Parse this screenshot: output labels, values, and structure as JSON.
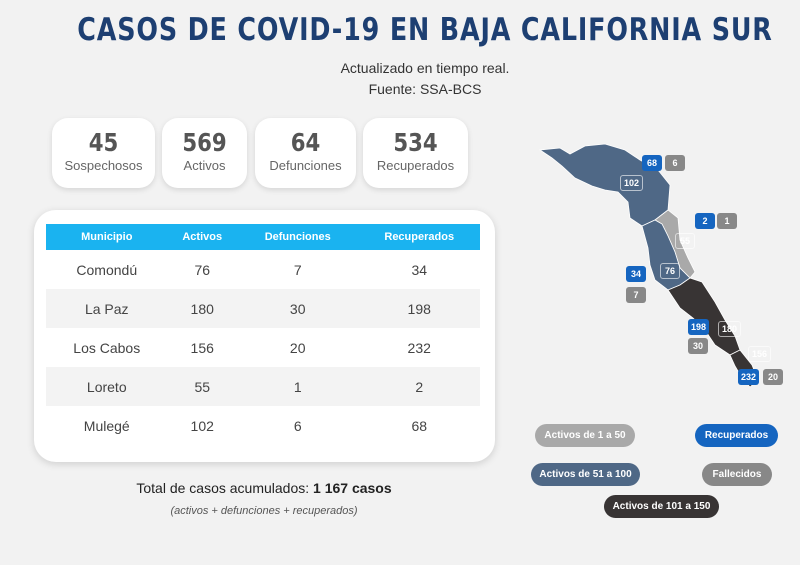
{
  "header": {
    "title": "CASOS DE COVID-19 EN BAJA CALIFORNIA SUR",
    "subtitle_1": "Actualizado en tiempo real.",
    "subtitle_2": "Fuente: SSA-BCS"
  },
  "stats": [
    {
      "value": "45",
      "label": "Sospechosos"
    },
    {
      "value": "569",
      "label": "Activos"
    },
    {
      "value": "64",
      "label": "Defunciones"
    },
    {
      "value": "534",
      "label": "Recuperados"
    }
  ],
  "table": {
    "headers": [
      "Municipio",
      "Activos",
      "Defunciones",
      "Recuperados"
    ],
    "rows": [
      [
        "Comondú",
        "76",
        "7",
        "34"
      ],
      [
        "La Paz",
        "180",
        "30",
        "198"
      ],
      [
        "Los Cabos",
        "156",
        "20",
        "232"
      ],
      [
        "Loreto",
        "55",
        "1",
        "2"
      ],
      [
        "Mulegé",
        "102",
        "6",
        "68"
      ]
    ]
  },
  "totals": {
    "label": "Total de casos acumulados:",
    "value": "1 167 casos",
    "note": "(activos + defunciones + recuperados)"
  },
  "map": {
    "colors": {
      "low": "#a9a9a9",
      "mid": "#4f6886",
      "high": "#383434",
      "recovered": "#1565c0",
      "deaths": "#888888"
    },
    "mulege": {
      "active": "102",
      "recovered": "68",
      "deaths": "6"
    },
    "loreto": {
      "active": "55",
      "recovered": "2",
      "deaths": "1"
    },
    "comondu": {
      "active": "76",
      "recovered": "34",
      "deaths": "7"
    },
    "lapaz": {
      "active": "180",
      "recovered": "198",
      "deaths": "30"
    },
    "loscabos": {
      "active": "156",
      "recovered": "232",
      "deaths": "20"
    }
  },
  "legend": {
    "low": "Activos de 1 a 50",
    "mid": "Activos de 51 a 100",
    "high": "Activos de 101 a 150",
    "recovered": "Recuperados",
    "deaths": "Fallecidos"
  }
}
